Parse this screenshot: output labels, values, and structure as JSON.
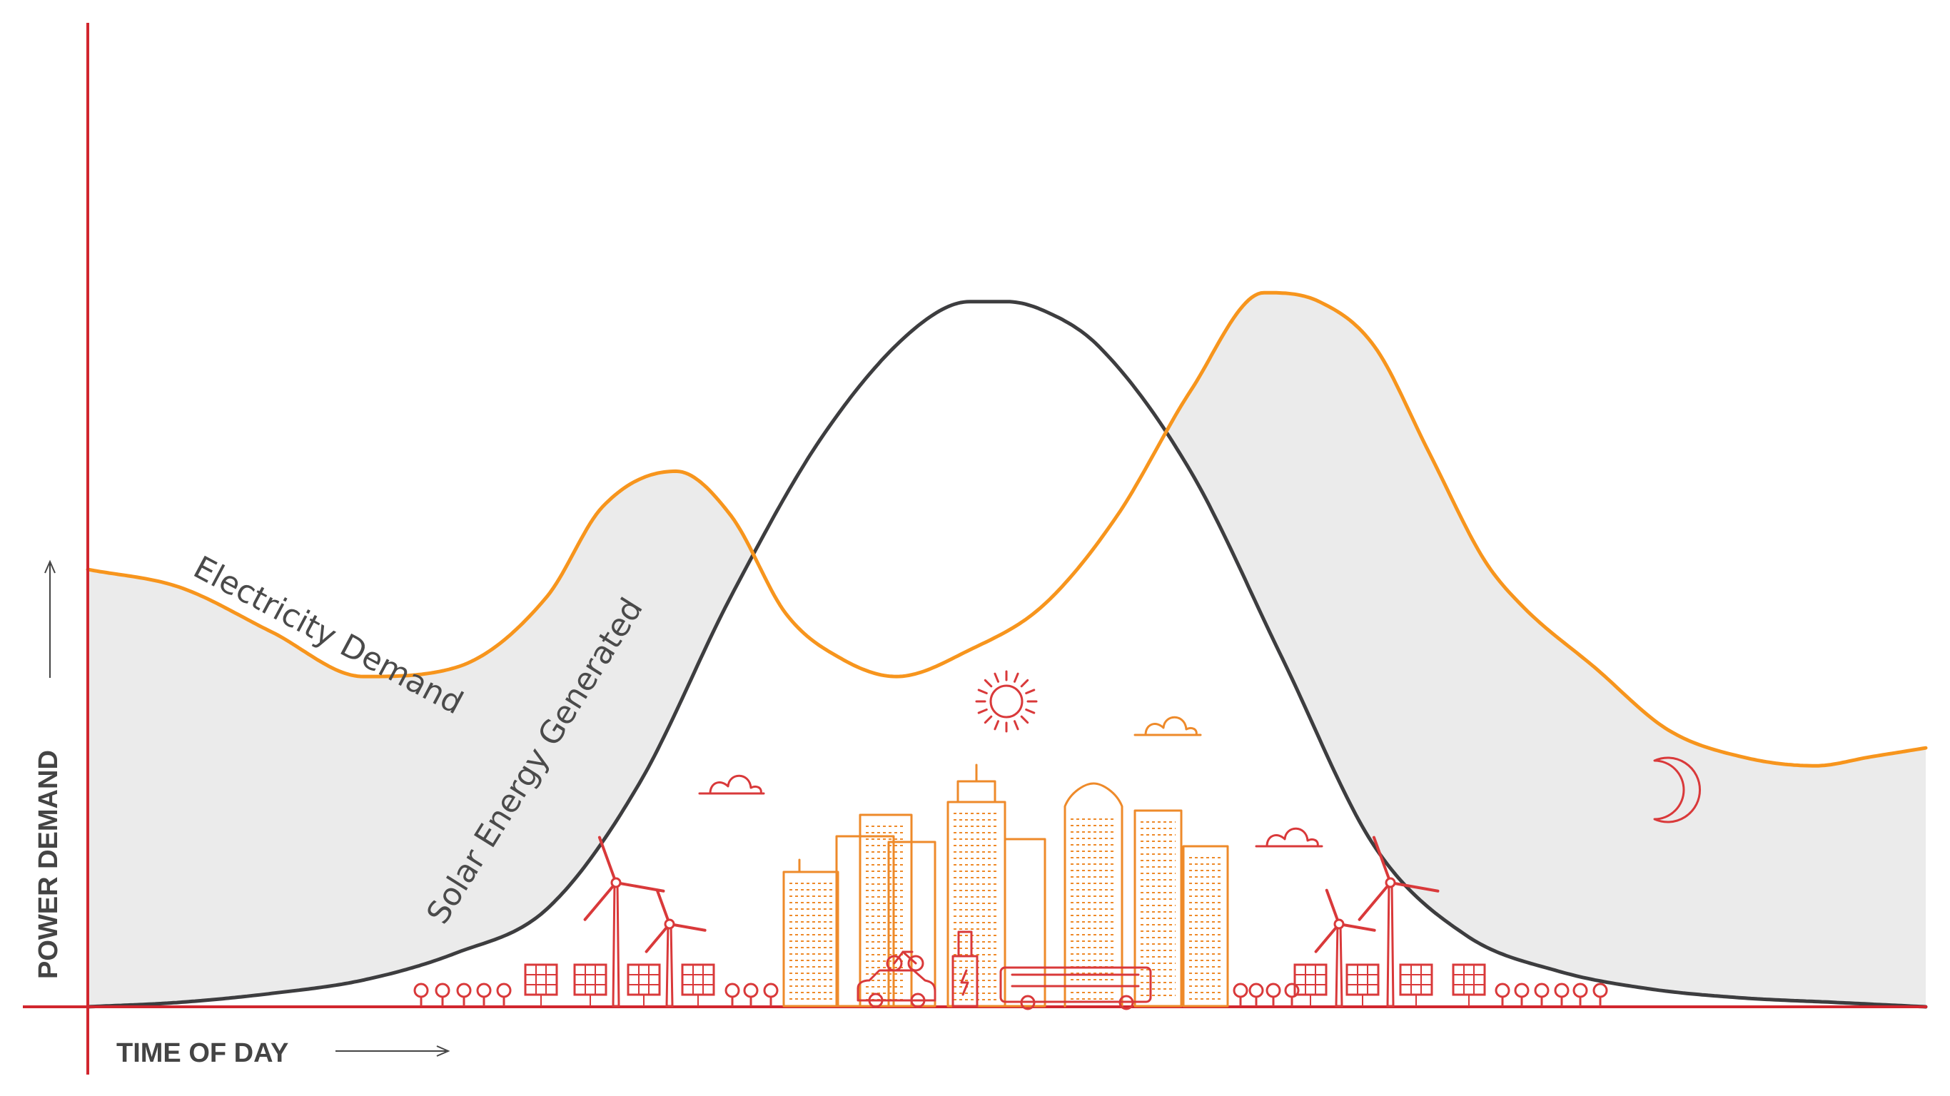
{
  "colors": {
    "demand": "#f7951d",
    "solar": "#3d3d3f",
    "shade": "#ebebeb",
    "axis": "#d1262e",
    "text": "#444444",
    "art_orange": "#ee8a2a",
    "art_red": "#d9393a"
  },
  "icons": [
    "sun-icon",
    "cloud-icon",
    "moon-icon",
    "city-skyline-icon",
    "wind-turbine-icon",
    "solar-panel-icon",
    "tree-icon",
    "ev-charger-icon",
    "car-icon",
    "bus-icon",
    "bicycle-icon"
  ],
  "chart_data": {
    "type": "line",
    "title": "",
    "xlabel": "TIME OF DAY",
    "ylabel": "POWER DEMAND",
    "xlim": [
      0,
      100
    ],
    "ylim": [
      0,
      100
    ],
    "grid": false,
    "ticks": false,
    "shading": "gap between Electricity Demand and Solar Energy Generated shaded where demand exceeds solar",
    "series": [
      {
        "name": "Electricity Demand",
        "x": [
          0,
          5,
          10,
          15,
          20,
          25,
          28,
          32,
          35,
          38,
          41,
          44,
          48,
          52,
          56,
          60,
          64,
          67,
          70,
          73,
          76,
          78,
          82,
          86,
          90,
          94,
          97,
          100
        ],
        "y": [
          49,
          47,
          42,
          37,
          38,
          46,
          56,
          60,
          55,
          44,
          39,
          37,
          40,
          45,
          55,
          69,
          80,
          79,
          74,
          62,
          50,
          45,
          38,
          31,
          28,
          27,
          28,
          29
        ]
      },
      {
        "name": "Solar Energy Generated",
        "x": [
          0,
          5,
          10,
          15,
          20,
          25,
          30,
          35,
          40,
          45,
          48,
          50,
          52,
          55,
          60,
          65,
          70,
          75,
          80,
          85,
          90,
          95,
          100
        ],
        "y": [
          0,
          0.5,
          1.5,
          3,
          6,
          11,
          25,
          46,
          64,
          76,
          79,
          79,
          78,
          74,
          60,
          39,
          18,
          8,
          4,
          2,
          1,
          0.5,
          0
        ]
      }
    ]
  }
}
